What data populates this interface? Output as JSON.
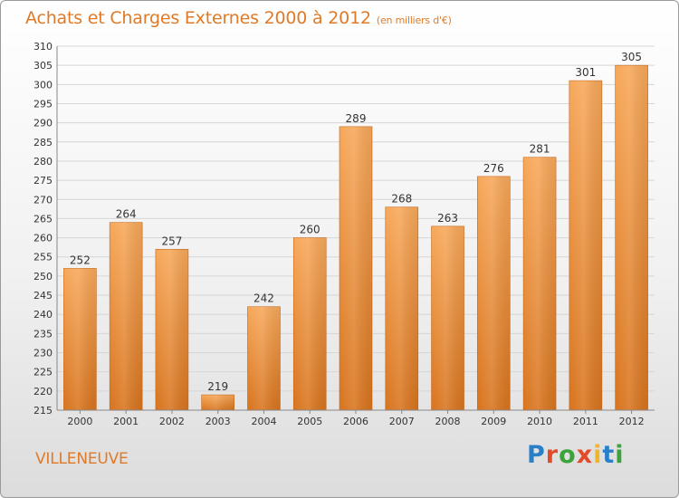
{
  "header": {
    "title": "Achats et Charges Externes 2000 à 2012",
    "subtitle": "(en milliers d'€)"
  },
  "footer": {
    "city": "VILLENEUVE",
    "brand": "Proxiti"
  },
  "colors": {
    "accent": "#e07a26",
    "bar_top": "#f7a85a",
    "bar_bottom": "#d8741e",
    "brand_letters": [
      "#2a7fc9",
      "#e24b2a",
      "#3aa33a",
      "#e24b2a",
      "#f0b52a",
      "#2a7fc9",
      "#3aa33a"
    ]
  },
  "chart_data": {
    "type": "bar",
    "categories": [
      "2000",
      "2001",
      "2002",
      "2003",
      "2004",
      "2005",
      "2006",
      "2007",
      "2008",
      "2009",
      "2010",
      "2011",
      "2012"
    ],
    "values": [
      252,
      264,
      257,
      219,
      242,
      260,
      289,
      268,
      263,
      276,
      281,
      301,
      305
    ],
    "title": "Achats et Charges Externes 2000 à 2012",
    "subtitle": "(en milliers d'€)",
    "ylim": [
      215,
      310
    ],
    "yticks": [
      215,
      220,
      225,
      230,
      235,
      240,
      245,
      250,
      255,
      260,
      265,
      270,
      275,
      280,
      285,
      290,
      295,
      300,
      305,
      310
    ],
    "grid": true,
    "data_labels": true
  }
}
